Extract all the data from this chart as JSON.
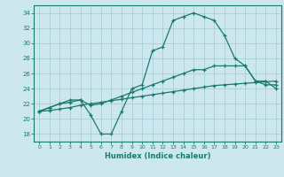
{
  "xlabel": "Humidex (Indice chaleur)",
  "ylabel": "",
  "bg_color": "#cce8ee",
  "grid_color": "#a8ced8",
  "line_color": "#1a7a6e",
  "xlim": [
    -0.5,
    23.5
  ],
  "ylim": [
    17,
    35
  ],
  "yticks": [
    18,
    20,
    22,
    24,
    26,
    28,
    30,
    32,
    34
  ],
  "xticks": [
    0,
    1,
    2,
    3,
    4,
    5,
    6,
    7,
    8,
    9,
    10,
    11,
    12,
    13,
    14,
    15,
    16,
    17,
    18,
    19,
    20,
    21,
    22,
    23
  ],
  "line1": [
    21,
    21.5,
    22,
    22.5,
    22.5,
    20.5,
    18,
    18,
    21,
    24,
    24.5,
    29,
    29.5,
    33,
    33.5,
    34,
    33.5,
    33,
    31,
    28,
    27,
    25,
    25,
    24
  ],
  "line2": [
    21,
    21.5,
    22,
    22.2,
    22.5,
    21.8,
    22,
    22.5,
    23,
    23.5,
    24,
    24.5,
    25,
    25.5,
    26,
    26.5,
    26.5,
    27,
    27,
    27,
    27,
    25,
    24.5,
    24.5
  ],
  "line3": [
    21,
    21.1,
    21.3,
    21.5,
    21.8,
    22,
    22.2,
    22.4,
    22.6,
    22.8,
    23,
    23.2,
    23.4,
    23.6,
    23.8,
    24,
    24.2,
    24.4,
    24.5,
    24.6,
    24.7,
    24.8,
    24.9,
    25
  ]
}
